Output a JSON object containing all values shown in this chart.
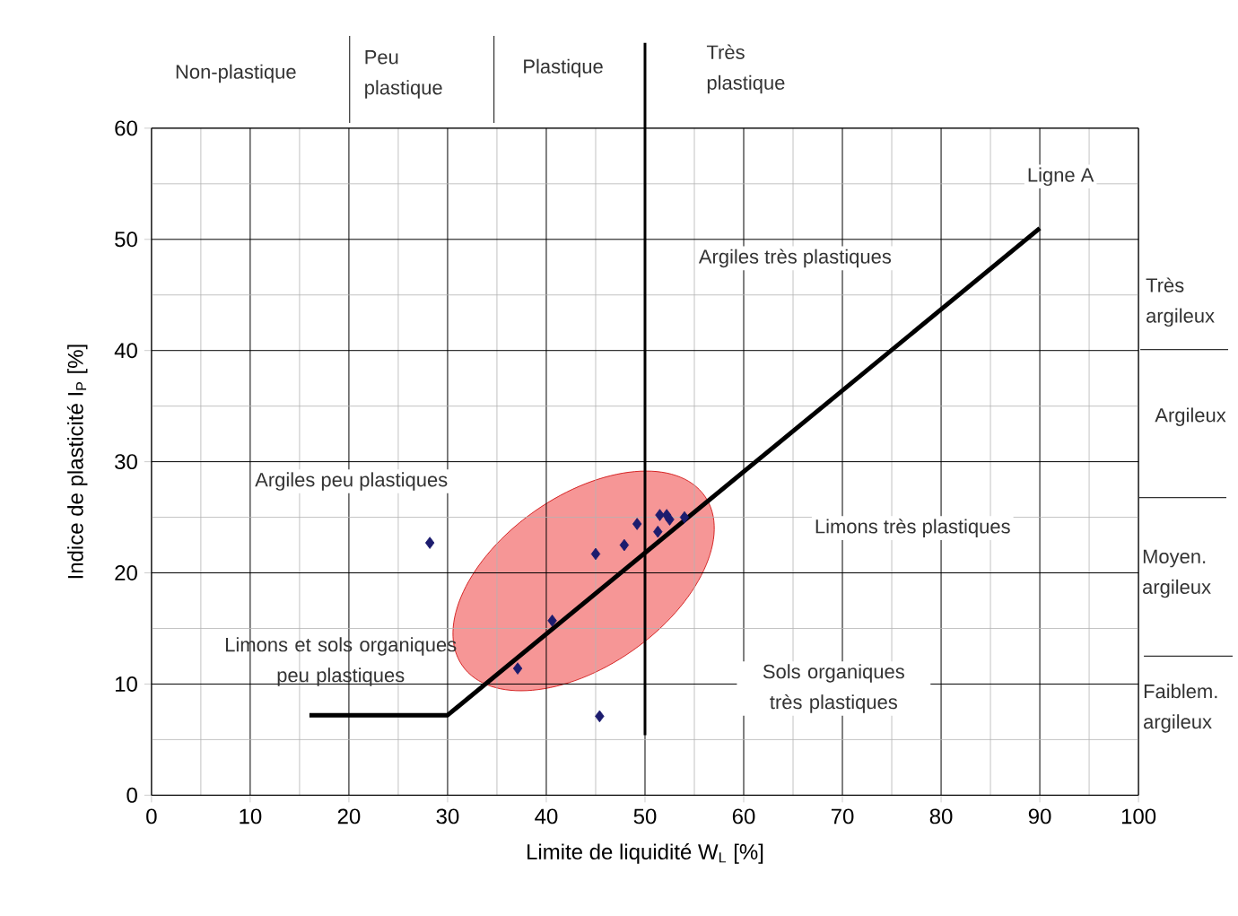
{
  "chart_data": {
    "type": "scatter",
    "xlabel": "Limite de liquidité W$_{L}$ [%]",
    "ylabel": "Indice de plasticité I$_{P}$ [%]",
    "xlim": [
      0,
      100
    ],
    "ylim": [
      0,
      60
    ],
    "xticks": [
      0,
      10,
      20,
      30,
      40,
      50,
      60,
      70,
      80,
      90,
      100
    ],
    "yticks": [
      0,
      10,
      20,
      30,
      40,
      50,
      60
    ],
    "grid": true,
    "marker": "diamond",
    "series": [
      {
        "type": "scatter",
        "color": "#1c1c6e",
        "x": [
          28.2,
          45.0,
          47.9,
          49.2,
          51.5,
          52.2,
          52.5,
          51.3,
          54.0,
          40.6,
          37.1,
          45.4
        ],
        "values": [
          22.7,
          21.7,
          22.5,
          24.4,
          25.2,
          25.2,
          24.8,
          23.7,
          25.0,
          15.7,
          11.4,
          7.1
        ]
      },
      {
        "type": "line",
        "color": "#000000",
        "marker": "none",
        "x": [
          16,
          30,
          90
        ],
        "values": [
          7.2,
          7.2,
          51.0
        ]
      }
    ],
    "ref_lines": [
      {
        "axis": "x",
        "value": 50,
        "color": "#000000"
      }
    ],
    "annotations": [
      "Ligne A",
      "Argiles très plastiques",
      "Argiles peu plastiques",
      "Limons très plastiques",
      "Limons et sols organiques peu plastiques",
      "Sols organiques très plastiques",
      "Non-plastique",
      "Peu plastique",
      "Plastique",
      "Très plastique",
      "Très argileux",
      "Argileux",
      "Moyen. argileux",
      "Faiblem. argileux"
    ]
  }
}
